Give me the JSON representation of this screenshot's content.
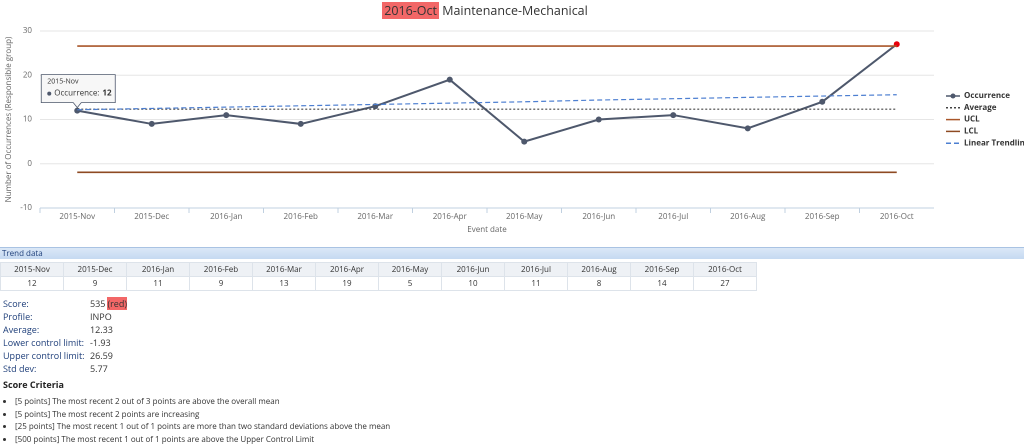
{
  "chart_data": {
    "type": "line",
    "title_period": "2016-Oct",
    "title": "Maintenance-Mechanical",
    "y_label": "Number of Occurrences (Responsible group)",
    "x_label": "Event date",
    "categories": [
      "2015-Nov",
      "2015-Dec",
      "2016-Jan",
      "2016-Feb",
      "2016-Mar",
      "2016-Apr",
      "2016-May",
      "2016-Jun",
      "2016-Jul",
      "2016-Aug",
      "2016-Sep",
      "2016-Oct"
    ],
    "ylim": [
      -10,
      30
    ],
    "yticks": [
      -10,
      0,
      10,
      20,
      30
    ],
    "grid": true,
    "legend": "right",
    "outlier_color": "#e8000b",
    "series": [
      {
        "name": "Occurrence",
        "color": "#4e586c",
        "style": "solid",
        "markers": true,
        "values": [
          12,
          9,
          11,
          9,
          13,
          19,
          5,
          10,
          11,
          8,
          14,
          27
        ]
      },
      {
        "name": "Average",
        "color": "#444444",
        "style": "dotted",
        "values": [
          12.33,
          12.33,
          12.33,
          12.33,
          12.33,
          12.33,
          12.33,
          12.33,
          12.33,
          12.33,
          12.33,
          12.33
        ]
      },
      {
        "name": "UCL",
        "color": "#a9562a",
        "style": "solid",
        "values": [
          26.59,
          26.59,
          26.59,
          26.59,
          26.59,
          26.59,
          26.59,
          26.59,
          26.59,
          26.59,
          26.59,
          26.59
        ]
      },
      {
        "name": "LCL",
        "color": "#8e4a22",
        "style": "solid",
        "values": [
          -1.93,
          -1.93,
          -1.93,
          -1.93,
          -1.93,
          -1.93,
          -1.93,
          -1.93,
          -1.93,
          -1.93,
          -1.93,
          -1.93
        ]
      },
      {
        "name": "Linear Trendline",
        "color": "#4d7fd1",
        "style": "dashed",
        "values": [
          12.2,
          12.5,
          12.8,
          13.1,
          13.4,
          13.7,
          14.0,
          14.4,
          14.7,
          15.0,
          15.3,
          15.6
        ]
      }
    ],
    "tooltip": {
      "title": "2015-Nov",
      "label": "Occurrence:",
      "value": 12
    }
  },
  "trend_table": {
    "title": "Trend data",
    "headers": [
      "2015-Nov",
      "2015-Dec",
      "2016-Jan",
      "2016-Feb",
      "2016-Mar",
      "2016-Apr",
      "2016-May",
      "2016-Jun",
      "2016-Jul",
      "2016-Aug",
      "2016-Sep",
      "2016-Oct"
    ],
    "values": [
      12,
      9,
      11,
      9,
      13,
      19,
      5,
      10,
      11,
      8,
      14,
      27
    ]
  },
  "stats": {
    "rows": [
      {
        "label": "Score:",
        "value": "535",
        "status": "(red)"
      },
      {
        "label": "Profile:",
        "value": "INPO"
      },
      {
        "label": "Average:",
        "value": "12.33"
      },
      {
        "label": "Lower control limit:",
        "value": "-1.93"
      },
      {
        "label": "Upper control limit:",
        "value": "26.59"
      },
      {
        "label": "Std dev:",
        "value": "5.77"
      }
    ]
  },
  "criteria": {
    "title": "Score Criteria",
    "items": [
      "[5 points] The most recent 2 out of 3 points are above the overall mean",
      "[5 points] The most recent 2 points are increasing",
      "[25 points] The most recent 1 out of 1 points are more than two standard deviations above the mean",
      "[500 points] The most recent 1 out of 1 points are above the Upper Control Limit"
    ]
  }
}
